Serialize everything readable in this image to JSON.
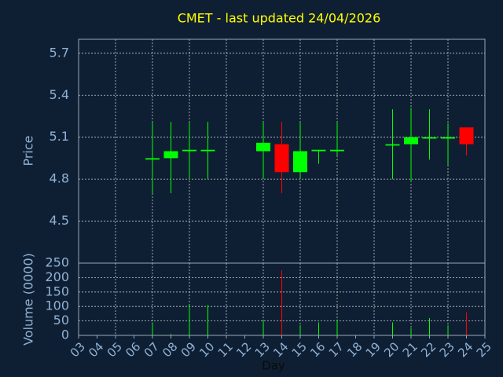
{
  "chart_data": [
    {
      "type": "candlestick",
      "title": "CMET - last updated 24/04/2026",
      "ylabel": "Price",
      "x": [
        7,
        8,
        9,
        10,
        13,
        14,
        15,
        16,
        17,
        20,
        21,
        22,
        23,
        24
      ],
      "open": [
        4.94,
        4.95,
        5.0,
        5.0,
        5.0,
        5.05,
        4.85,
        5.0,
        5.0,
        5.04,
        5.05,
        5.09,
        5.09,
        5.17
      ],
      "high": [
        5.21,
        5.21,
        5.21,
        5.21,
        5.21,
        5.21,
        5.21,
        5.01,
        5.21,
        5.3,
        5.31,
        5.3,
        5.2,
        5.17
      ],
      "low": [
        4.7,
        4.7,
        4.8,
        4.8,
        4.8,
        4.7,
        4.8,
        4.91,
        4.97,
        4.8,
        4.78,
        4.94,
        4.9,
        4.97
      ],
      "close": [
        4.95,
        5.0,
        5.01,
        5.01,
        5.06,
        4.85,
        5.0,
        5.01,
        5.01,
        5.05,
        5.1,
        5.1,
        5.1,
        5.05
      ],
      "up_color": "#00ff00",
      "down_color": "#ff0000",
      "xlim": [
        3,
        25
      ],
      "ylim": [
        4.2,
        5.8
      ],
      "yticks": [
        4.5,
        4.8,
        5.1,
        5.4,
        5.7
      ],
      "grid": true
    },
    {
      "type": "bar",
      "ylabel": "Volume (0000)",
      "xlabel": "Day",
      "x": [
        7,
        8,
        9,
        10,
        13,
        14,
        15,
        16,
        17,
        20,
        21,
        22,
        23,
        24
      ],
      "values": [
        45,
        5,
        105,
        105,
        50,
        225,
        35,
        45,
        55,
        45,
        25,
        60,
        35,
        80
      ],
      "xlim": [
        3,
        25
      ],
      "ylim": [
        0,
        250
      ],
      "yticks": [
        0,
        50,
        100,
        150,
        200,
        250
      ],
      "xticks": [
        {
          "value": 3,
          "label": "03"
        },
        {
          "value": 4,
          "label": "04"
        },
        {
          "value": 5,
          "label": "05"
        },
        {
          "value": 6,
          "label": "06"
        },
        {
          "value": 7,
          "label": "07"
        },
        {
          "value": 8,
          "label": "08"
        },
        {
          "value": 9,
          "label": "09"
        },
        {
          "value": 10,
          "label": "10"
        },
        11,
        12,
        13,
        14,
        15,
        16,
        17,
        18,
        19,
        20,
        21,
        22,
        23,
        24,
        25
      ],
      "grid": true
    }
  ]
}
